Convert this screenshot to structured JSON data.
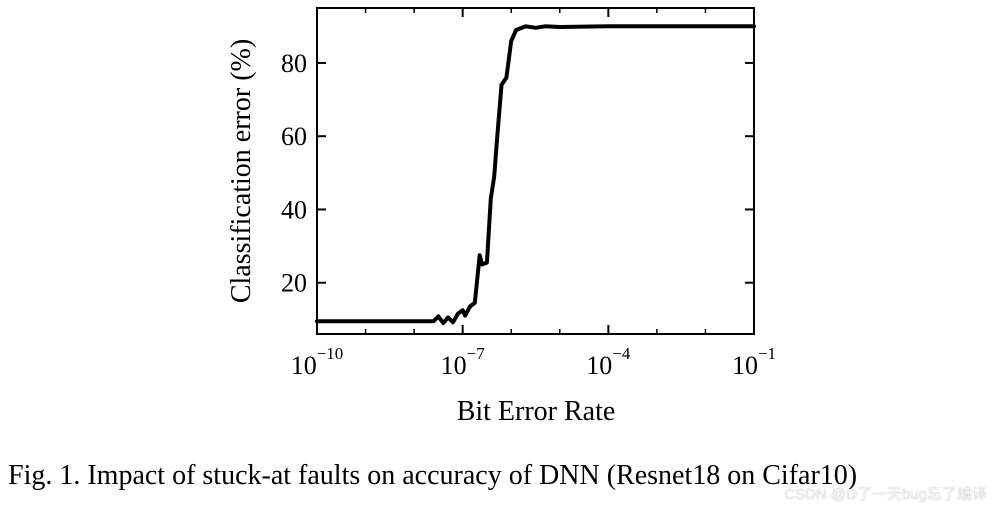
{
  "chart_data": {
    "type": "line",
    "xlabel": "Bit Error Rate",
    "ylabel": "Classification error (%)",
    "xscale": "log",
    "xlim_log10": [
      -10,
      -1
    ],
    "ylim": [
      6,
      95
    ],
    "xticks": [
      {
        "base": "10",
        "exp": "−10",
        "log": -10
      },
      {
        "base": "10",
        "exp": "−7",
        "log": -7
      },
      {
        "base": "10",
        "exp": "−4",
        "log": -4
      },
      {
        "base": "10",
        "exp": "−1",
        "log": -1
      }
    ],
    "yticks": [
      20,
      40,
      60,
      80
    ],
    "series": [
      {
        "color": "#000000",
        "log10_x": [
          -10,
          -9.5,
          -9.0,
          -8.5,
          -8.0,
          -7.6,
          -7.5,
          -7.4,
          -7.3,
          -7.2,
          -7.1,
          -7.0,
          -6.95,
          -6.85,
          -6.75,
          -6.65,
          -6.6,
          -6.5,
          -6.42,
          -6.35,
          -6.3,
          -6.2,
          -6.1,
          -6.0,
          -5.9,
          -5.7,
          -5.5,
          -5.3,
          -5.0,
          -4.0,
          -3.0,
          -2.0,
          -1.0
        ],
        "y": [
          9.5,
          9.5,
          9.5,
          9.5,
          9.5,
          9.5,
          10.8,
          9.0,
          10.5,
          9.2,
          11.5,
          12.5,
          11.0,
          13.5,
          14.5,
          27.5,
          25.0,
          25.5,
          43.0,
          49.0,
          58.0,
          74.0,
          76.0,
          86.0,
          89.0,
          90.0,
          89.6,
          90.0,
          89.8,
          90.0,
          90.0,
          90.0,
          90.0
        ]
      }
    ]
  },
  "caption": "Fig. 1.  Impact of stuck-at faults on accuracy of DNN (Resnet18 on Cifar10)",
  "watermark": "CSDN @D了一天bug忘了编译"
}
